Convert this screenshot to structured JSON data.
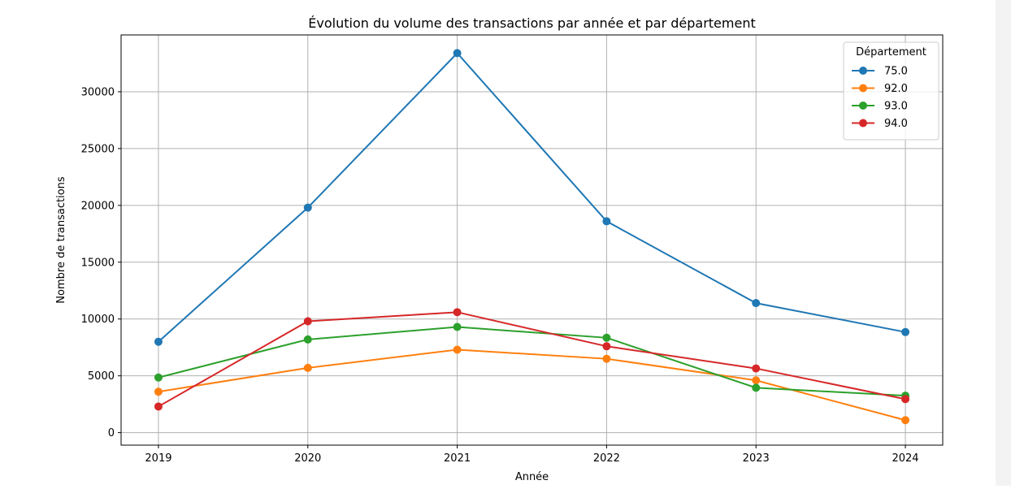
{
  "chart_data": {
    "type": "line",
    "title": "Évolution du volume des transactions par année et par département",
    "xlabel": "Année",
    "ylabel": "Nombre de transactions",
    "x": [
      2019,
      2020,
      2021,
      2022,
      2023,
      2024
    ],
    "ylim": [
      -1100,
      35000
    ],
    "yticks": [
      0,
      5000,
      10000,
      15000,
      20000,
      25000,
      30000
    ],
    "grid": true,
    "legend": {
      "title": "Département",
      "position": "top-right"
    },
    "series": [
      {
        "name": "75.0",
        "color": "#1f77b4",
        "values": [
          8000,
          19800,
          33400,
          18600,
          11400,
          8850
        ]
      },
      {
        "name": "92.0",
        "color": "#ff7f0e",
        "values": [
          3600,
          5700,
          7300,
          6500,
          4600,
          1100
        ]
      },
      {
        "name": "93.0",
        "color": "#2ca02c",
        "values": [
          4850,
          8200,
          9300,
          8350,
          3950,
          3250
        ]
      },
      {
        "name": "94.0",
        "color": "#d62728",
        "values": [
          2300,
          9800,
          10600,
          7600,
          5650,
          2950
        ]
      }
    ]
  }
}
